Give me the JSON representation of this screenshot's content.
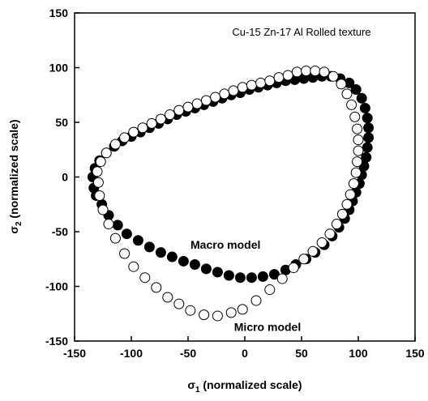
{
  "chart_data": {
    "type": "scatter",
    "annotations": [
      {
        "text": "Cu-15 Zn-17 Al Rolled texture",
        "x": 50,
        "y": 133
      },
      {
        "text": "Macro model",
        "x": -17,
        "y": -62
      },
      {
        "text": "Micro model",
        "x": 20,
        "y": -137
      }
    ],
    "xlabel": {
      "symbol": "σ",
      "sub": "1",
      "text": " (normalized scale)"
    },
    "ylabel": {
      "symbol": "σ",
      "sub": "2",
      "text": " (normalized scale)"
    },
    "xlim": [
      -150,
      150
    ],
    "ylim": [
      -150,
      150
    ],
    "xticks": [
      -150,
      -100,
      -50,
      0,
      50,
      100,
      150
    ],
    "yticks": [
      -150,
      -100,
      -50,
      0,
      50,
      100,
      150
    ],
    "series": [
      {
        "name": "Macro model",
        "color": "#000000",
        "filled": true,
        "x": [
          -133,
          -134,
          -132,
          -128,
          -122,
          -115,
          -108,
          -100,
          -92,
          -84,
          -76,
          -68,
          -60,
          -52,
          -44,
          -36,
          -28,
          -20,
          -12,
          -4,
          4,
          12,
          20,
          28,
          36,
          44,
          52,
          60,
          68,
          76,
          84,
          92,
          98,
          103,
          106,
          108,
          109,
          109,
          108,
          107,
          105,
          103,
          101,
          98,
          95,
          92,
          88,
          83,
          77,
          70,
          62,
          54,
          45,
          36,
          26,
          16,
          6,
          -4,
          -14,
          -24,
          -34,
          -44,
          -54,
          -64,
          -74,
          -84,
          -94,
          -104,
          -112,
          -120,
          -126,
          -131
        ],
        "y": [
          -10,
          0,
          8,
          15,
          22,
          28,
          33,
          37,
          41,
          45,
          49,
          53,
          57,
          60,
          63,
          66,
          69,
          72,
          75,
          77,
          80,
          82,
          84,
          86,
          88,
          89,
          90,
          91,
          92,
          92,
          90,
          86,
          80,
          72,
          63,
          54,
          45,
          36,
          27,
          18,
          10,
          2,
          -6,
          -14,
          -22,
          -30,
          -38,
          -46,
          -54,
          -62,
          -69,
          -75,
          -80,
          -85,
          -89,
          -91,
          -92,
          -92,
          -90,
          -87,
          -84,
          -80,
          -77,
          -73,
          -69,
          -64,
          -58,
          -52,
          -44,
          -35,
          -25,
          -17
        ]
      },
      {
        "name": "Micro model",
        "color": "#000000",
        "filled": false,
        "x": [
          -129,
          -130,
          -127,
          -122,
          -114,
          -106,
          -98,
          -90,
          -82,
          -74,
          -66,
          -58,
          -50,
          -42,
          -34,
          -26,
          -18,
          -10,
          -2,
          6,
          14,
          22,
          30,
          38,
          46,
          54,
          62,
          70,
          78,
          85,
          90,
          94,
          97,
          99,
          100,
          100,
          99,
          98,
          96,
          93,
          90,
          86,
          81,
          75,
          68,
          60,
          52,
          43,
          33,
          22,
          10,
          -2,
          -12,
          -24,
          -36,
          -48,
          -58,
          -68,
          -78,
          -88,
          -98,
          -106,
          -114,
          -120,
          -125,
          -128
        ],
        "y": [
          -5,
          5,
          14,
          22,
          30,
          36,
          41,
          45,
          49,
          53,
          57,
          61,
          64,
          67,
          70,
          73,
          76,
          79,
          82,
          84,
          86,
          88,
          91,
          93,
          96,
          97,
          97,
          96,
          92,
          85,
          76,
          66,
          55,
          44,
          34,
          24,
          14,
          4,
          -6,
          -16,
          -25,
          -34,
          -43,
          -52,
          -60,
          -68,
          -75,
          -83,
          -93,
          -103,
          -113,
          -121,
          -124,
          -127,
          -126,
          -122,
          -116,
          -110,
          -101,
          -92,
          -82,
          -70,
          -56,
          -43,
          -30,
          -17
        ]
      }
    ]
  }
}
